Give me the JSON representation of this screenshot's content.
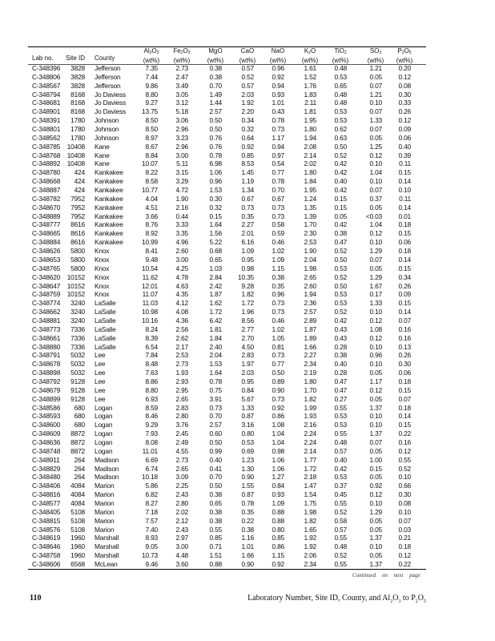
{
  "table": {
    "columns": [
      {
        "key": "lab",
        "label": "Lab  no."
      },
      {
        "key": "site",
        "label": "Site  ID"
      },
      {
        "key": "county",
        "label": "County"
      },
      {
        "key": "al",
        "formula": [
          "Al",
          "2",
          "O",
          "3"
        ],
        "unit": "(wt%)"
      },
      {
        "key": "fe",
        "formula": [
          "Fe",
          "2",
          "O",
          "3"
        ],
        "unit": "(wt%)"
      },
      {
        "key": "mg",
        "formula": [
          "MgO",
          "",
          "",
          ""
        ],
        "unit": "(wt%)"
      },
      {
        "key": "ca",
        "formula": [
          "CaO",
          "",
          "",
          ""
        ],
        "unit": "(wt%)"
      },
      {
        "key": "na",
        "formula": [
          "NaO",
          "",
          "",
          ""
        ],
        "unit": "(wt%)"
      },
      {
        "key": "k",
        "formula": [
          "K",
          "2",
          "O",
          ""
        ],
        "unit": "(wt%)"
      },
      {
        "key": "ti",
        "formula": [
          "TiO",
          "2",
          "",
          ""
        ],
        "unit": "(wt%)"
      },
      {
        "key": "so",
        "formula": [
          "SO",
          "3",
          "",
          ""
        ],
        "unit": "(wt%)"
      },
      {
        "key": "p",
        "formula": [
          "P",
          "2",
          "O",
          "5"
        ],
        "unit": "(wt%)"
      }
    ],
    "rows": [
      [
        "C-348396",
        "3828",
        "Jefferson",
        "7.35",
        "2.73",
        "0.38",
        "0.57",
        "0.96",
        "1.61",
        "0.48",
        "1.21",
        "0.20"
      ],
      [
        "C-348806",
        "3828",
        "Jefferson",
        "7.44",
        "2.47",
        "0.38",
        "0.52",
        "0.92",
        "1.52",
        "0.53",
        "0.05",
        "0.12"
      ],
      [
        "C-348567",
        "3828",
        "Jefferson",
        "9.86",
        "3.49",
        "0.70",
        "0.57",
        "0.94",
        "1.76",
        "0.65",
        "0.07",
        "0.08"
      ],
      [
        "C-348794",
        "8168",
        "Jo  Daviess",
        "8.80",
        "3.05",
        "1.49",
        "2.03",
        "0.93",
        "1.83",
        "0.48",
        "1.21",
        "0.30"
      ],
      [
        "C-348681",
        "8168",
        "Jo  Daviess",
        "9.27",
        "3.12",
        "1.44",
        "1.92",
        "1.01",
        "2.11",
        "0.48",
        "0.10",
        "0.33"
      ],
      [
        "C-348901",
        "8168",
        "Jo  Daviess",
        "13.75",
        "5.18",
        "2.57",
        "2.20",
        "0.43",
        "1.81",
        "0.53",
        "0.07",
        "0.26"
      ],
      [
        "C-348391",
        "1780",
        "Johnson",
        "8.50",
        "3.06",
        "0.50",
        "0.34",
        "0.78",
        "1.95",
        "0.53",
        "1.33",
        "0.12"
      ],
      [
        "C-348801",
        "1780",
        "Johnson",
        "8.50",
        "2.96",
        "0.50",
        "0.32",
        "0.73",
        "1.80",
        "0.62",
        "0.07",
        "0.09"
      ],
      [
        "C-348562",
        "1780",
        "Johnson",
        "8.97",
        "3.23",
        "0.76",
        "0.64",
        "1.17",
        "1.94",
        "0.63",
        "0.05",
        "0.06"
      ],
      [
        "C-348785",
        "10408",
        "Kane",
        "8.67",
        "2.96",
        "0.76",
        "0.92",
        "0.94",
        "2.08",
        "0.50",
        "1.25",
        "0.40"
      ],
      [
        "C-348768",
        "10408",
        "Kane",
        "8.84",
        "3.00",
        "0.78",
        "0.85",
        "0.97",
        "2.14",
        "0.52",
        "0.12",
        "0.39"
      ],
      [
        "C-348892",
        "10408",
        "Kane",
        "10.07",
        "5.11",
        "6.98",
        "8.53",
        "0.54",
        "2.02",
        "0.42",
        "0.10",
        "0.11"
      ],
      [
        "C-348780",
        "424",
        "Kankakee",
        "8.22",
        "3.15",
        "1.06",
        "1.45",
        "0.77",
        "1.80",
        "0.42",
        "1.04",
        "0.15"
      ],
      [
        "C-348668",
        "424",
        "Kankakee",
        "8.58",
        "3.29",
        "0.96",
        "1.19",
        "0.78",
        "1.84",
        "0.40",
        "0.10",
        "0.14"
      ],
      [
        "C-348887",
        "424",
        "Kankakee",
        "10.77",
        "4.72",
        "1.53",
        "1.34",
        "0.70",
        "1.95",
        "0.42",
        "0.07",
        "0.10"
      ],
      [
        "C-348782",
        "7952",
        "Kankakee",
        "4.04",
        "1.90",
        "0.30",
        "0.67",
        "0.67",
        "1.24",
        "0.15",
        "0.37",
        "0.11"
      ],
      [
        "C-348670",
        "7952",
        "Kankakee",
        "4.51",
        "2.16",
        "0.32",
        "0.73",
        "0.73",
        "1.35",
        "0.15",
        "0.05",
        "0.14"
      ],
      [
        "C-348889",
        "7952",
        "Kankakee",
        "3.66",
        "0.44",
        "0.15",
        "0.35",
        "0.73",
        "1.39",
        "0.05",
        "<0.03",
        "0.01"
      ],
      [
        "C-348777",
        "8616",
        "Kankakee",
        "8.76",
        "3.33",
        "1.64",
        "2.27",
        "0.58",
        "1.70",
        "0.42",
        "1.04",
        "0.18"
      ],
      [
        "C-348665",
        "8616",
        "Kankakee",
        "8.92",
        "3.35",
        "1.56",
        "2.01",
        "0.59",
        "2.30",
        "0.38",
        "0.12",
        "0.15"
      ],
      [
        "C-348884",
        "8616",
        "Kankakee",
        "10.99",
        "4.96",
        "5.22",
        "6.16",
        "0.46",
        "2.53",
        "0.47",
        "0.10",
        "0.06"
      ],
      [
        "C-348626",
        "5800",
        "Knox",
        "8.41",
        "2.60",
        "0.68",
        "1.09",
        "1.02",
        "1.90",
        "0.52",
        "1.29",
        "0.18"
      ],
      [
        "C-348653",
        "5800",
        "Knox",
        "9.48",
        "3.00",
        "0.65",
        "0.95",
        "1.09",
        "2.04",
        "0.50",
        "0.07",
        "0.14"
      ],
      [
        "C-348765",
        "5800",
        "Knox",
        "10.54",
        "4.25",
        "1.03",
        "0.98",
        "1.15",
        "1.98",
        "0.53",
        "0.05",
        "0.15"
      ],
      [
        "C-348620",
        "10152",
        "Knox",
        "11.62",
        "4.78",
        "2.84",
        "10.35",
        "0.38",
        "2.65",
        "0.52",
        "1.29",
        "0.34"
      ],
      [
        "C-348647",
        "10152",
        "Knox",
        "12.01",
        "4.63",
        "2.42",
        "9.28",
        "0.35",
        "2.60",
        "0.50",
        "1.67",
        "0.26"
      ],
      [
        "C-348759",
        "10152",
        "Knox",
        "11.07",
        "4.35",
        "1.87",
        "1.82",
        "0.96",
        "1.94",
        "0.53",
        "0.17",
        "0.09"
      ],
      [
        "C-348774",
        "3240",
        "LaSalle",
        "11.03",
        "4.12",
        "1.62",
        "1.72",
        "0.73",
        "2.36",
        "0.53",
        "1.33",
        "0.15"
      ],
      [
        "C-348662",
        "3240",
        "LaSalle",
        "10.98",
        "4.08",
        "1.72",
        "1.96",
        "0.73",
        "2.57",
        "0.52",
        "0.10",
        "0.14"
      ],
      [
        "C-348881",
        "3240",
        "LaSalle",
        "10.16",
        "4.36",
        "6.42",
        "8.56",
        "0.46",
        "2.89",
        "0.42",
        "0.12",
        "0.07"
      ],
      [
        "C-348773",
        "7336",
        "LaSalle",
        "8.24",
        "2.56",
        "1.81",
        "2.77",
        "1.02",
        "1.87",
        "0.43",
        "1.08",
        "0.16"
      ],
      [
        "C-348661",
        "7336",
        "LaSalle",
        "8.39",
        "2.62",
        "1.84",
        "2.70",
        "1.05",
        "1.89",
        "0.43",
        "0.12",
        "0.16"
      ],
      [
        "C-348880",
        "7336",
        "LaSalle",
        "6.54",
        "2.17",
        "2.40",
        "4.50",
        "0.81",
        "1.66",
        "0.28",
        "0.10",
        "0.13"
      ],
      [
        "C-348791",
        "5032",
        "Lee",
        "7.84",
        "2.53",
        "2.04",
        "2.83",
        "0.73",
        "2.27",
        "0.38",
        "0.96",
        "0.26"
      ],
      [
        "C-348678",
        "5032",
        "Lee",
        "8.48",
        "2.73",
        "1.53",
        "1.97",
        "0.77",
        "2.34",
        "0.40",
        "0.10",
        "0.30"
      ],
      [
        "C-348898",
        "5032",
        "Lee",
        "7.63",
        "1.93",
        "1.64",
        "2.03",
        "0.50",
        "2.19",
        "0.28",
        "0.05",
        "0.06"
      ],
      [
        "C-348792",
        "9128",
        "Lee",
        "8.86",
        "2.93",
        "0.78",
        "0.95",
        "0.89",
        "1.80",
        "0.47",
        "1.17",
        "0.18"
      ],
      [
        "C-348679",
        "9128",
        "Lee",
        "8.80",
        "2.95",
        "0.75",
        "0.84",
        "0.90",
        "1.70",
        "0.47",
        "0.12",
        "0.15"
      ],
      [
        "C-348899",
        "9128",
        "Lee",
        "6.93",
        "2.65",
        "3.91",
        "5.67",
        "0.73",
        "1.82",
        "0.27",
        "0.05",
        "0.07"
      ],
      [
        "C-348586",
        "680",
        "Logan",
        "8.59",
        "2.83",
        "0.73",
        "1.33",
        "0.92",
        "1.99",
        "0.55",
        "1.37",
        "0.18"
      ],
      [
        "C-348593",
        "680",
        "Logan",
        "8.46",
        "2.80",
        "0.70",
        "0.87",
        "0.86",
        "1.93",
        "0.53",
        "0.10",
        "0.14"
      ],
      [
        "C-348600",
        "680",
        "Logan",
        "9.29",
        "3.76",
        "2.57",
        "3.16",
        "1.08",
        "2.16",
        "0.53",
        "0.10",
        "0.15"
      ],
      [
        "C-348609",
        "8872",
        "Logan",
        "7.93",
        "2.45",
        "0.60",
        "0.80",
        "1.04",
        "2.24",
        "0.55",
        "1.37",
        "0.22"
      ],
      [
        "C-348636",
        "8872",
        "Logan",
        "8.08",
        "2.49",
        "0.50",
        "0.53",
        "1.04",
        "2.24",
        "0.48",
        "0.07",
        "0.16"
      ],
      [
        "C-348748",
        "8872",
        "Logan",
        "11.01",
        "4.55",
        "0.99",
        "0.69",
        "0.98",
        "2.14",
        "0.57",
        "0.05",
        "0.12"
      ],
      [
        "C-348911",
        "264",
        "Madison",
        "6.69",
        "2.73",
        "0.40",
        "1.23",
        "1.06",
        "1.77",
        "0.40",
        "1.00",
        "0.55"
      ],
      [
        "C-348829",
        "264",
        "Madison",
        "6.74",
        "2.65",
        "0.41",
        "1.30",
        "1.06",
        "1.72",
        "0.42",
        "0.15",
        "0.52"
      ],
      [
        "C-348480",
        "264",
        "Madison",
        "10.18",
        "3.09",
        "0.70",
        "0.90",
        "1.27",
        "2.18",
        "0.53",
        "0.05",
        "0.10"
      ],
      [
        "C-348406",
        "4084",
        "Marion",
        "5.86",
        "2.25",
        "0.50",
        "1.55",
        "0.84",
        "1.47",
        "0.37",
        "0.92",
        "0.66"
      ],
      [
        "C-348816",
        "4084",
        "Marion",
        "6.82",
        "2.43",
        "0.38",
        "0.87",
        "0.93",
        "1.54",
        "0.45",
        "0.12",
        "0.30"
      ],
      [
        "C-348577",
        "4084",
        "Marion",
        "8.27",
        "2.80",
        "0.65",
        "0.78",
        "1.09",
        "1.75",
        "0.55",
        "0.10",
        "0.08"
      ],
      [
        "C-348405",
        "5108",
        "Marion",
        "7.18",
        "2.02",
        "0.38",
        "0.35",
        "0.88",
        "1.98",
        "0.52",
        "1.29",
        "0.10"
      ],
      [
        "C-348815",
        "5108",
        "Marion",
        "7.57",
        "2.12",
        "0.38",
        "0.22",
        "0.88",
        "1.82",
        "0.58",
        "0.05",
        "0.07"
      ],
      [
        "C-348576",
        "5108",
        "Marion",
        "7.40",
        "2.43",
        "0.55",
        "0.38",
        "0.80",
        "1.65",
        "0.57",
        "0.05",
        "0.03"
      ],
      [
        "C-348619",
        "1960",
        "Marshall",
        "8.93",
        "2.97",
        "0.85",
        "1.16",
        "0.85",
        "1.92",
        "0.55",
        "1.37",
        "0.21"
      ],
      [
        "C-348646",
        "1960",
        "Marshall",
        "9.05",
        "3.00",
        "0.71",
        "1.01",
        "0.86",
        "1.92",
        "0.48",
        "0.10",
        "0.18"
      ],
      [
        "C-348758",
        "1960",
        "Marshall",
        "10.73",
        "4.48",
        "1.51",
        "1.66",
        "1.15",
        "2.06",
        "0.52",
        "0.05",
        "0.12"
      ],
      [
        "C-348606",
        "6568",
        "McLean",
        "9.46",
        "3.60",
        "0.88",
        "0.90",
        "0.92",
        "2.34",
        "0.55",
        "1.37",
        "0.22"
      ]
    ]
  },
  "continued": "Continued  on next  page",
  "footer": {
    "page_number": "110",
    "caption_parts": [
      "Laboratory Number,  Site ID, County, and  Al",
      "2",
      "O",
      "3",
      "  to P",
      "2",
      "O",
      "5"
    ]
  }
}
